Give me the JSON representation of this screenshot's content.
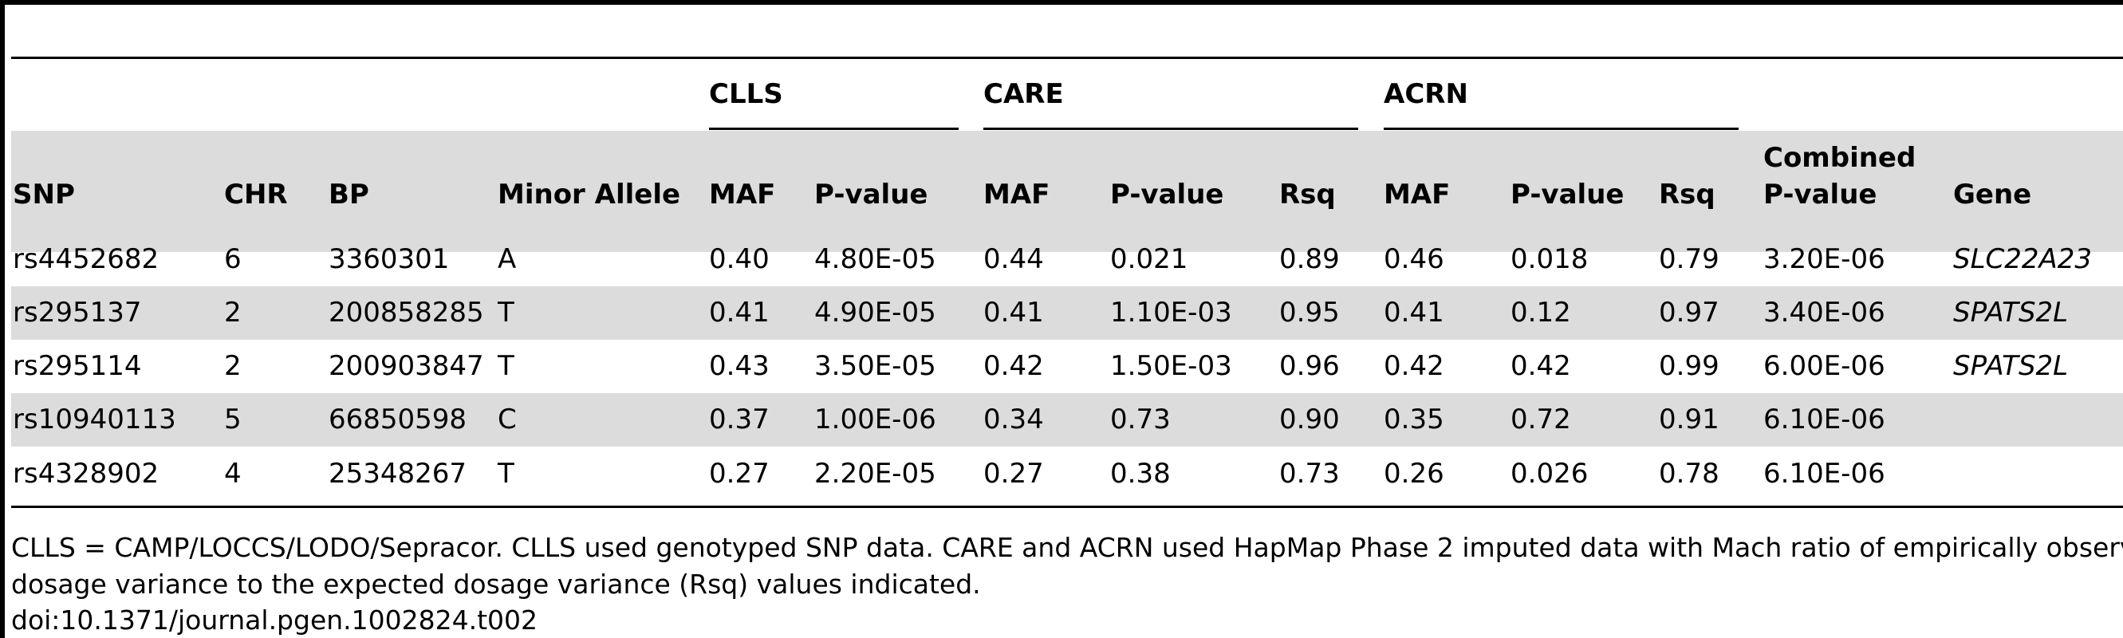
{
  "table": {
    "group_headers": [
      {
        "label": "CLLS"
      },
      {
        "label": "CARE"
      },
      {
        "label": "ACRN"
      }
    ],
    "columns": [
      "SNP",
      "CHR",
      "BP",
      "Minor Allele",
      "MAF",
      "P-value",
      "MAF",
      "P-value",
      "Rsq",
      "MAF",
      "P-value",
      "Rsq",
      "Combined P-value",
      "Gene"
    ],
    "combined_header": {
      "line1": "Combined",
      "line2": "P-value"
    },
    "rows": [
      [
        "rs4452682",
        "6",
        "3360301",
        "A",
        "0.40",
        "4.80E-05",
        "0.44",
        "0.021",
        "0.89",
        "0.46",
        "0.018",
        "0.79",
        "3.20E-06",
        "SLC22A23"
      ],
      [
        "rs295137",
        "2",
        "200858285",
        "T",
        "0.41",
        "4.90E-05",
        "0.41",
        "1.10E-03",
        "0.95",
        "0.41",
        "0.12",
        "0.97",
        "3.40E-06",
        "SPATS2L"
      ],
      [
        "rs295114",
        "2",
        "200903847",
        "T",
        "0.43",
        "3.50E-05",
        "0.42",
        "1.50E-03",
        "0.96",
        "0.42",
        "0.42",
        "0.99",
        "6.00E-06",
        "SPATS2L"
      ],
      [
        "rs10940113",
        "5",
        "66850598",
        "C",
        "0.37",
        "1.00E-06",
        "0.34",
        "0.73",
        "0.90",
        "0.35",
        "0.72",
        "0.91",
        "6.10E-06",
        ""
      ],
      [
        "rs4328902",
        "4",
        "25348267",
        "T",
        "0.27",
        "2.20E-05",
        "0.27",
        "0.38",
        "0.73",
        "0.26",
        "0.026",
        "0.78",
        "6.10E-06",
        ""
      ]
    ]
  },
  "footnote": {
    "line1": "CLLS = CAMP/LOCCS/LODO/Sepracor. CLLS used genotyped SNP data. CARE and ACRN used HapMap Phase 2 imputed data with Mach ratio of empirically observed",
    "line2": "dosage variance to the expected dosage variance (Rsq) values indicated.",
    "doi": "doi:10.1371/journal.pgen.1002824.t002"
  }
}
